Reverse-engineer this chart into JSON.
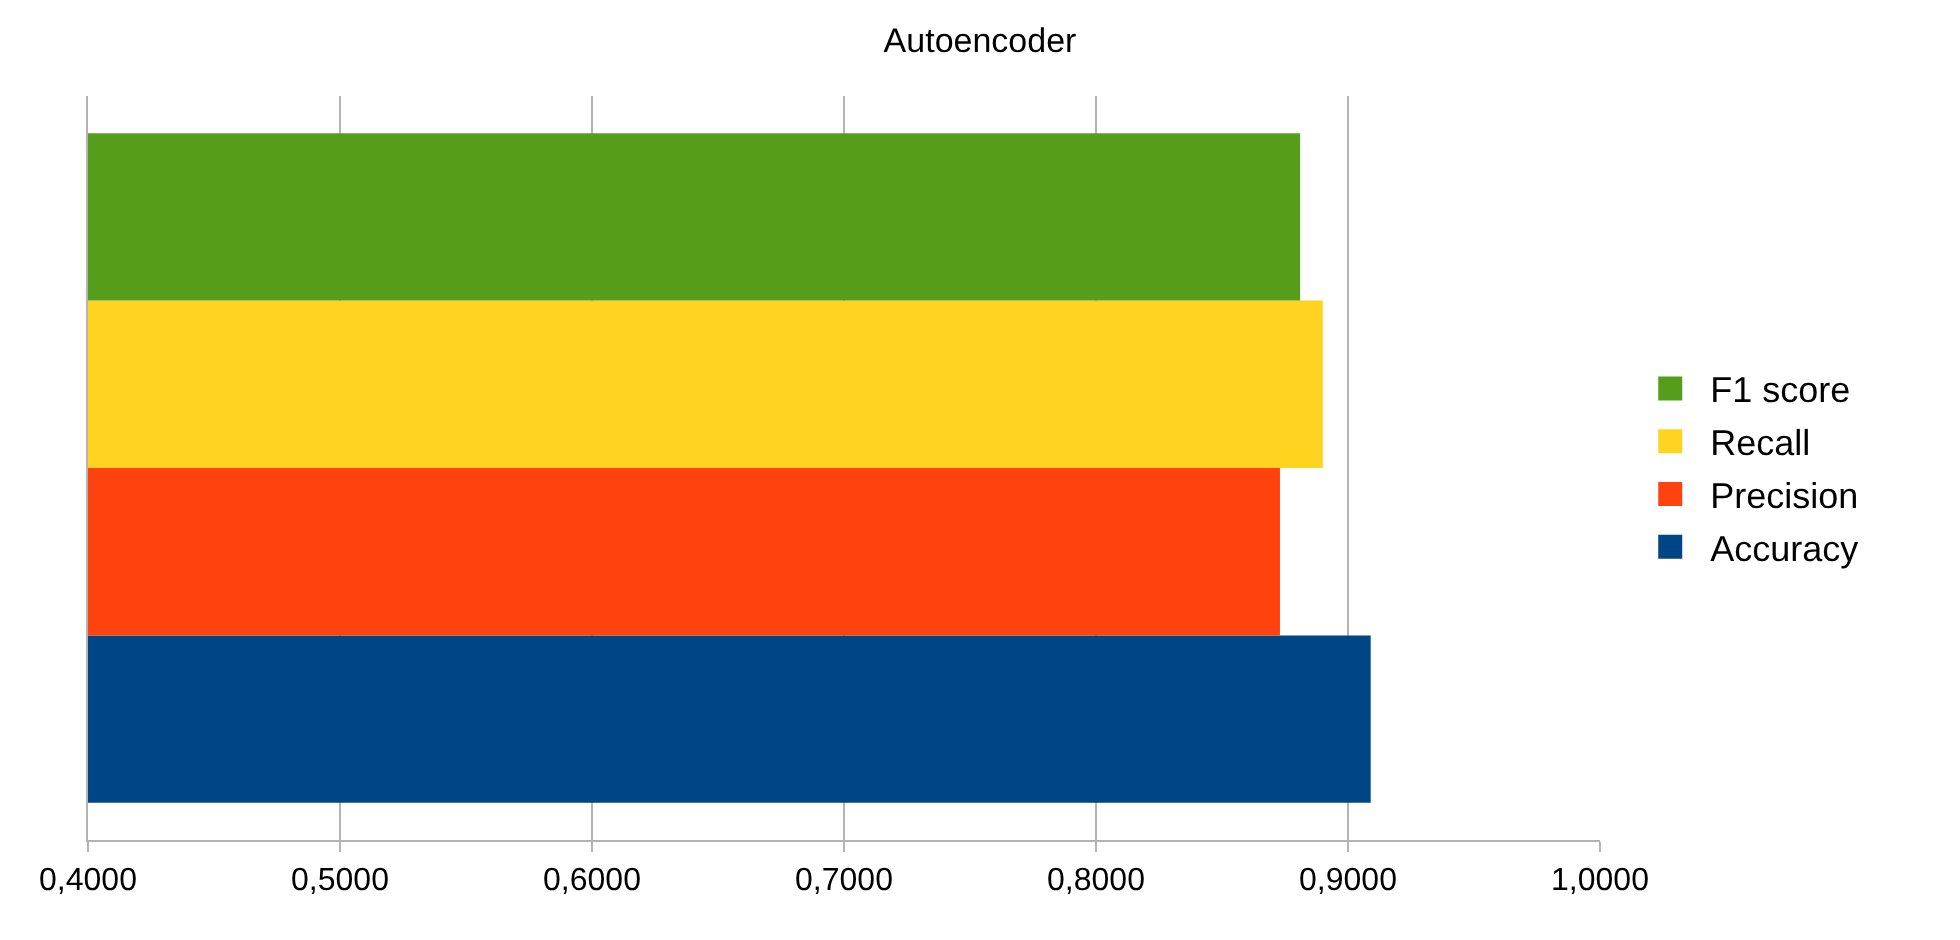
{
  "chart_data": {
    "type": "bar",
    "orientation": "horizontal",
    "title": "Autoencoder",
    "categories": [
      null
    ],
    "series": [
      {
        "name": "F1 score",
        "color": "#579d1c",
        "values": [
          0.881
        ]
      },
      {
        "name": "Recall",
        "color": "#ffd320",
        "values": [
          0.89
        ]
      },
      {
        "name": "Precision",
        "color": "#ff420e",
        "values": [
          0.873
        ]
      },
      {
        "name": "Accuracy",
        "color": "#004586",
        "values": [
          0.909
        ]
      }
    ],
    "xlim": [
      0.4,
      1.0
    ],
    "xticks": [
      {
        "value": 0.4,
        "label": "0,4000"
      },
      {
        "value": 0.5,
        "label": "0,5000"
      },
      {
        "value": 0.6,
        "label": "0,6000"
      },
      {
        "value": 0.7,
        "label": "0,7000"
      },
      {
        "value": 0.8,
        "label": "0,8000"
      },
      {
        "value": 0.9,
        "label": "0,9000"
      },
      {
        "value": 1.0,
        "label": "1,0000"
      }
    ],
    "grid": "x",
    "legend": "right"
  }
}
